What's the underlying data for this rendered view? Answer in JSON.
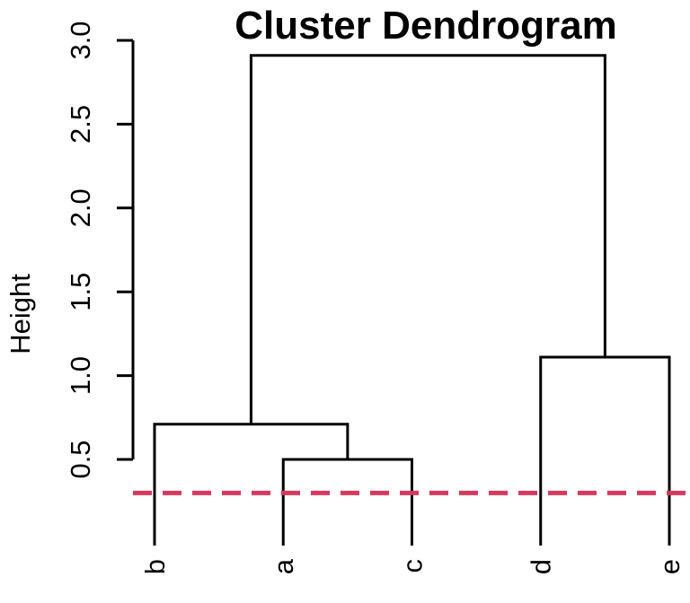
{
  "chart": {
    "title": "Cluster Dendrogram",
    "ylabel": "Height"
  },
  "chart_data": {
    "type": "dendrogram",
    "title": "Cluster Dendrogram",
    "xlabel": "",
    "ylabel": "Height",
    "grid": false,
    "legend": false,
    "leaves": [
      "b",
      "a",
      "c",
      "d",
      "e"
    ],
    "leaf_bottom_height": 0.0,
    "y_ticks": [
      0.5,
      1.0,
      1.5,
      2.0,
      2.5,
      3.0
    ],
    "y_tick_labels": [
      "0.5",
      "1.0",
      "1.5",
      "2.0",
      "2.5",
      "3.0"
    ],
    "ylim": [
      0.5,
      3.0
    ],
    "line_color": "#000000",
    "merges": [
      {
        "members": [
          "a",
          "c"
        ],
        "height": 0.5
      },
      {
        "members": [
          "b",
          "(a,c)"
        ],
        "height": 0.71
      },
      {
        "members": [
          "d",
          "e"
        ],
        "height": 1.11
      },
      {
        "members": [
          "(b,(a,c))",
          "(d,e)"
        ],
        "height": 2.91
      }
    ],
    "tree": {
      "height": 2.91,
      "children": [
        {
          "height": 0.71,
          "children": [
            {
              "leaf": "b"
            },
            {
              "height": 0.5,
              "children": [
                {
                  "leaf": "a"
                },
                {
                  "leaf": "c"
                }
              ]
            }
          ]
        },
        {
          "height": 1.11,
          "children": [
            {
              "leaf": "d"
            },
            {
              "leaf": "e"
            }
          ]
        }
      ]
    },
    "cut_line": {
      "height": 0.3,
      "color": "#d5395e",
      "style": "dashed"
    }
  }
}
